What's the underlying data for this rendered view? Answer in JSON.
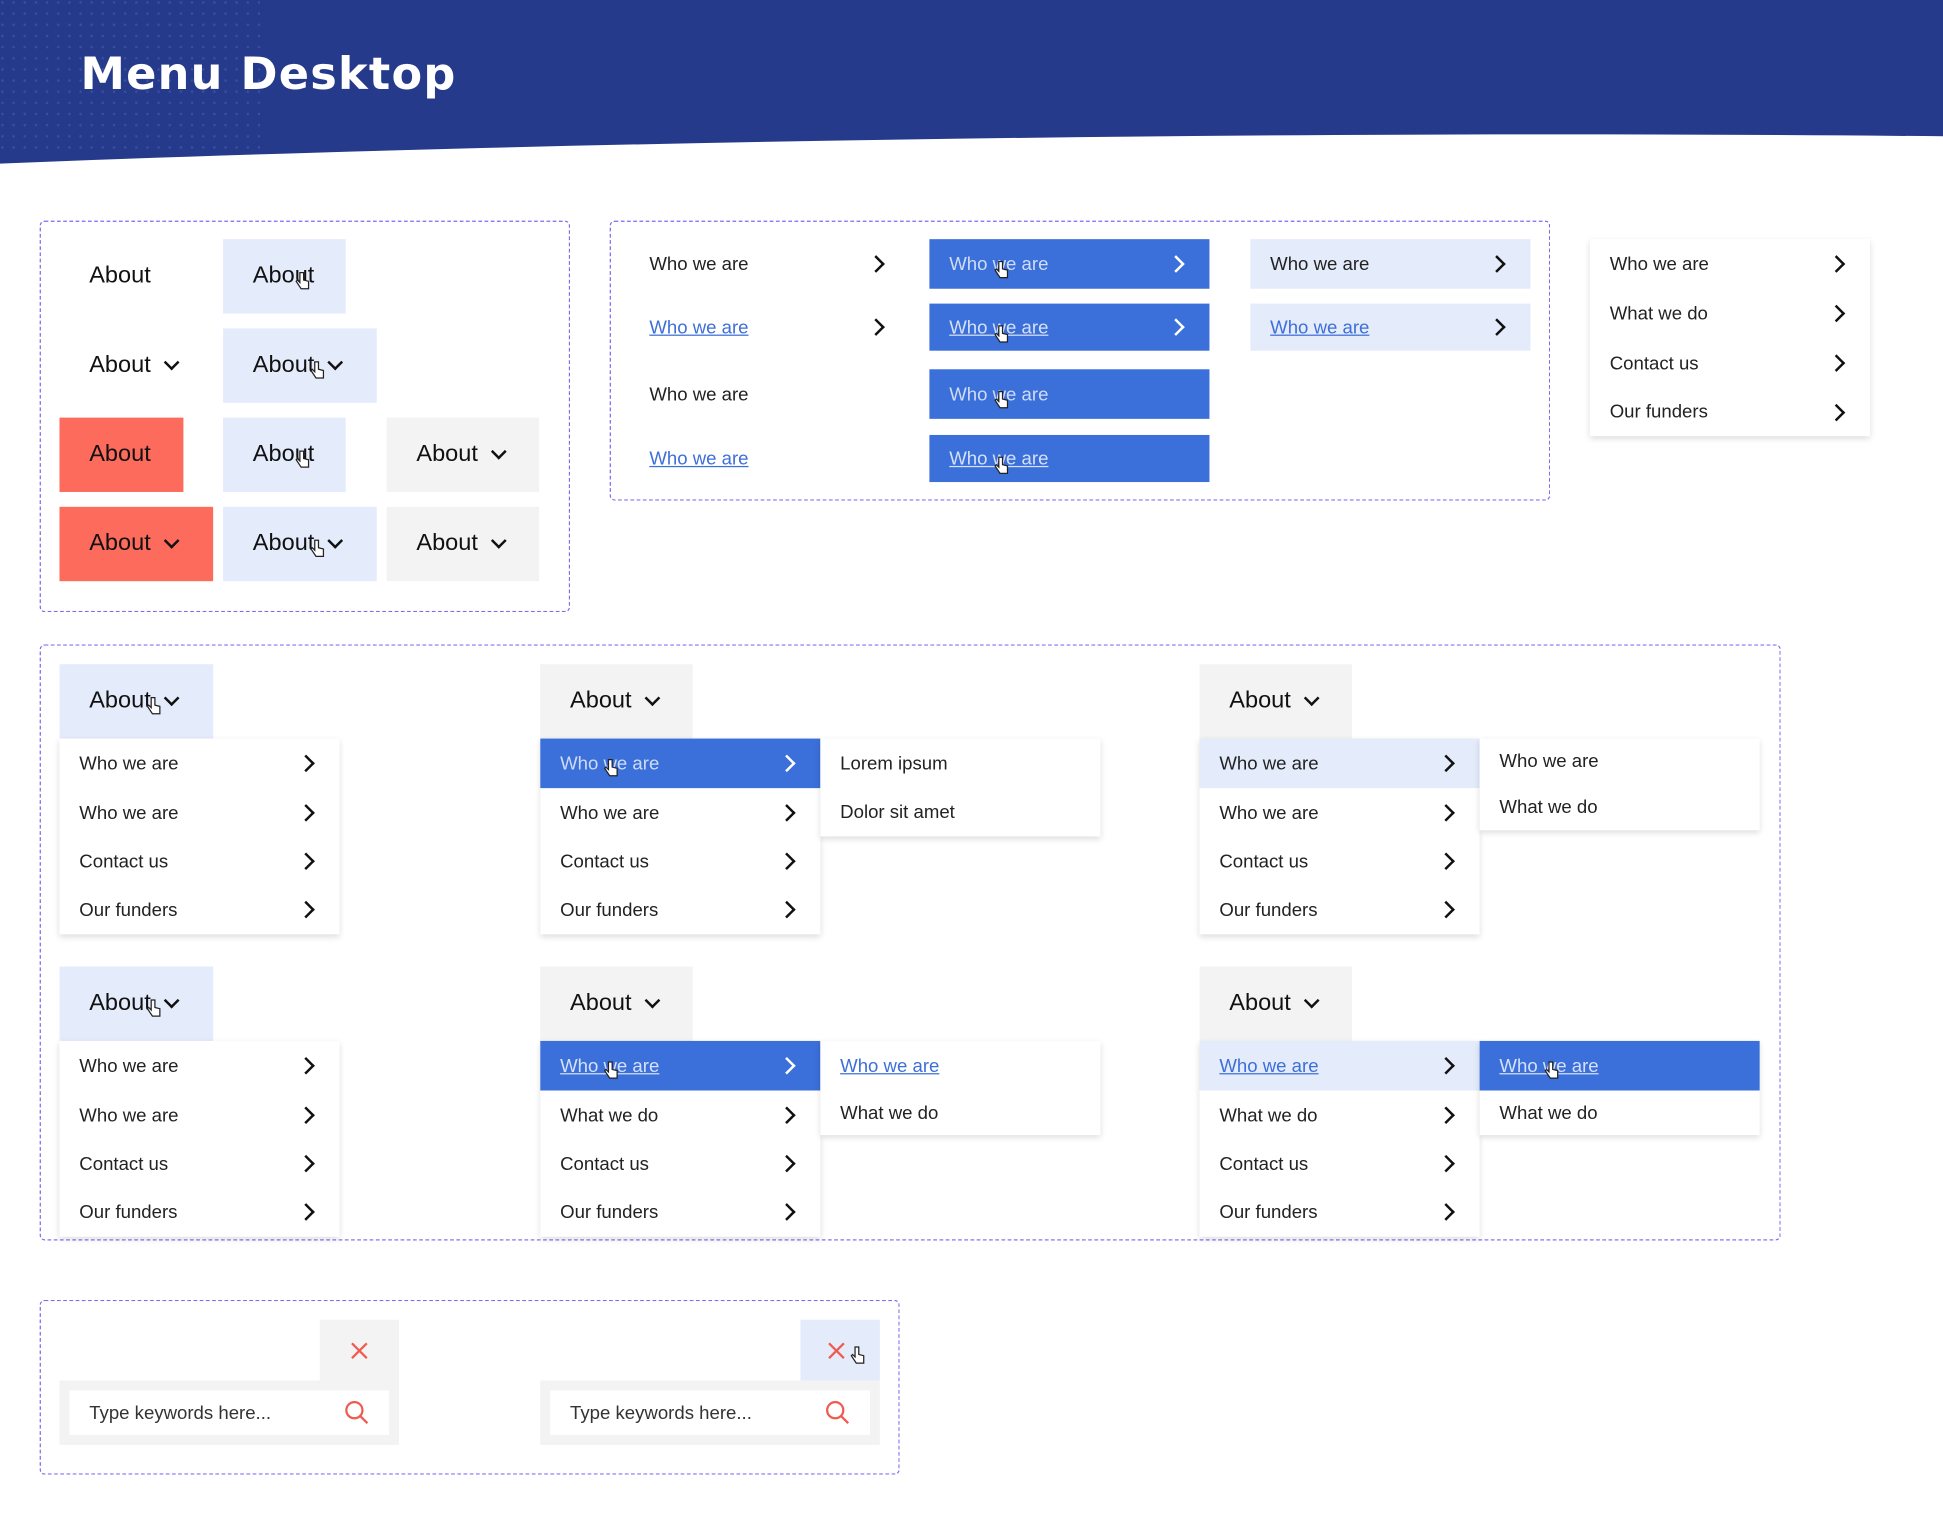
{
  "header": {
    "title": "Menu Desktop",
    "bg_color": "#263a8c"
  },
  "colors": {
    "accent_blue": "#3b6fd9",
    "pale_blue": "#e4ebfb",
    "coral": "#fc6b5c",
    "grey": "#f3f3f3",
    "frame": "#7b6cf0",
    "search_icon": "#f05a4f"
  },
  "top_nav": {
    "label": "About"
  },
  "submenu_states": {
    "label": "Who we are"
  },
  "sample_menu": {
    "items": [
      "Who we are",
      "What we do",
      "Contact us",
      "Our funders"
    ]
  },
  "dropdowns": {
    "trigger": "About",
    "items_a": [
      "Who we are",
      "Who we are",
      "Contact us",
      "Our funders"
    ],
    "items_b": [
      "Who we are",
      "What we do",
      "Contact us",
      "Our funders"
    ],
    "flyout_lorem": [
      "Lorem ipsum",
      "Dolor sit amet"
    ],
    "flyout_who": [
      "Who we are",
      "What we do"
    ]
  },
  "search": {
    "placeholder": "Type keywords here...",
    "close_icon": "close-icon",
    "search_icon": "search-icon"
  }
}
